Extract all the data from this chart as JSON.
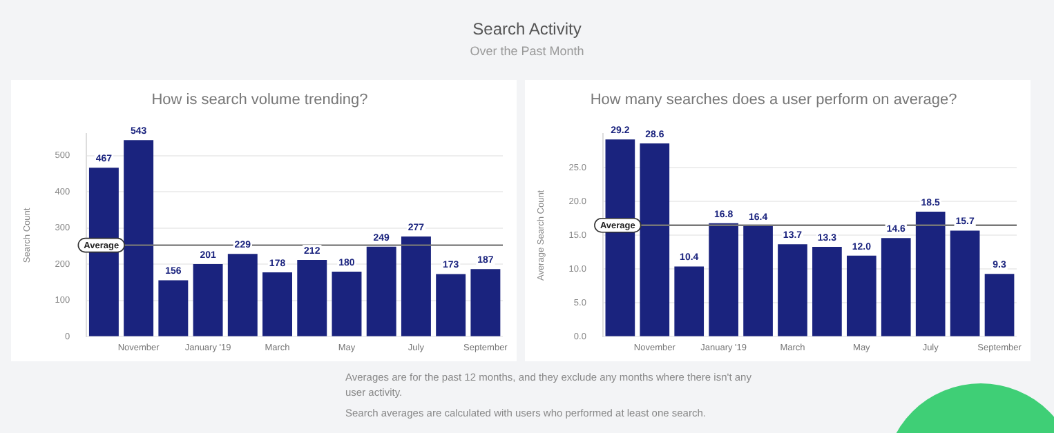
{
  "chart_data": [
    {
      "type": "other",
      "title": "Search Activity",
      "subtitle": "Over the Past Month",
      "annotations": [
        "Averages are for the past 12 months, and they exclude any months where there isn't any user activity.",
        "Search averages are calculated with users who performed at least one search."
      ]
    },
    {
      "type": "bar",
      "title": "How is search volume trending?",
      "ylabel": "Search Count",
      "categories": [
        null,
        "November",
        null,
        "January '19",
        null,
        "March",
        null,
        "May",
        null,
        "July",
        null,
        "September"
      ],
      "values": [
        467,
        543,
        156,
        201,
        229,
        178,
        212,
        180,
        249,
        277,
        173,
        187
      ],
      "color": "#1a237e",
      "ylim": [
        0,
        560
      ],
      "yticks": [
        0,
        100,
        200,
        300,
        400,
        500
      ],
      "grid": "y",
      "data_labels": true,
      "legend": false,
      "ref_lines": [
        {
          "axis": "y",
          "value": 253,
          "label": "Average",
          "color": "#777777"
        }
      ]
    },
    {
      "type": "bar",
      "title": "How many searches does a user perform on average?",
      "ylabel": "Average Search Count",
      "categories": [
        null,
        "November",
        null,
        "January '19",
        null,
        "March",
        null,
        "May",
        null,
        "July",
        null,
        "September"
      ],
      "values": [
        29.2,
        28.6,
        10.4,
        16.8,
        16.4,
        13.7,
        13.3,
        12.0,
        14.6,
        18.5,
        15.7,
        9.3
      ],
      "value_labels": [
        "29.2",
        "28.6",
        "10.4",
        "16.8",
        "16.4",
        "13.7",
        "13.3",
        "12.0",
        "14.6",
        "18.5",
        "15.7",
        "9.3"
      ],
      "color": "#1a237e",
      "ylim": [
        0,
        30
      ],
      "yticks": [
        {
          "value": 0,
          "label": "0.0"
        },
        {
          "value": 5,
          "label": "5.0"
        },
        {
          "value": 10,
          "label": "10.0"
        },
        {
          "value": 15,
          "label": "15.0"
        },
        {
          "value": 20,
          "label": "20.0"
        },
        {
          "value": 25,
          "label": "25.0"
        }
      ],
      "grid": "y",
      "legend": false,
      "ref_lines": [
        {
          "axis": "y",
          "value": 16.5,
          "label": "Average",
          "color": "#777777"
        }
      ]
    }
  ]
}
